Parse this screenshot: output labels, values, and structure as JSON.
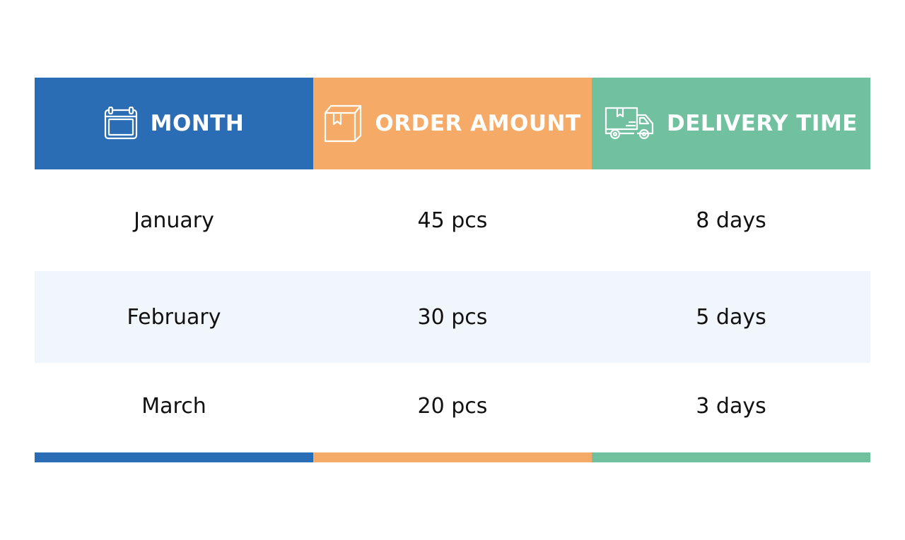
{
  "colors": {
    "month": "#2a6db5",
    "order": "#f5ab67",
    "delivery": "#71c1a0",
    "stripe": "#f1f6fc"
  },
  "header": {
    "month": {
      "label": "MONTH",
      "icon": "calendar-icon"
    },
    "order_amount": {
      "label": "ORDER AMOUNT",
      "icon": "box-icon"
    },
    "delivery_time": {
      "label": "DELIVERY TIME",
      "icon": "delivery-truck-icon"
    }
  },
  "rows": [
    {
      "month": "January",
      "order_amount": "45 pcs",
      "delivery_time": "8 days"
    },
    {
      "month": "February",
      "order_amount": "30 pcs",
      "delivery_time": "5 days"
    },
    {
      "month": "March",
      "order_amount": "20 pcs",
      "delivery_time": "3 days"
    }
  ]
}
